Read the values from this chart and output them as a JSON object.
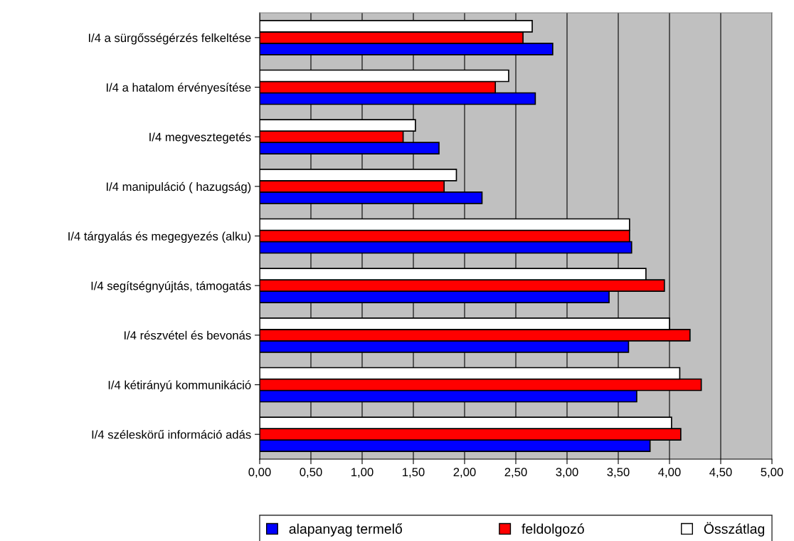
{
  "chart_data": {
    "type": "bar",
    "orientation": "horizontal",
    "categories": [
      "I/4 a sürgősségérzés felkeltése",
      "I/4 a hatalom érvényesítése",
      "I/4 megvesztegetés",
      "I/4 manipuláció ( hazugság)",
      "I/4 tárgyalás és megegyezés (alku)",
      "I/4 segítségnyújtás, támogatás",
      "I/4 részvétel és bevonás",
      "I/4 kétirányú kommunikáció",
      "I/4 széleskörű információ adás"
    ],
    "series": [
      {
        "name": "alapanyag termelő",
        "color": "#0000ff",
        "values": [
          2.86,
          2.69,
          1.75,
          2.17,
          3.63,
          3.41,
          3.6,
          3.68,
          3.81
        ]
      },
      {
        "name": "feldolgozó",
        "color": "#ff0000",
        "values": [
          2.57,
          2.3,
          1.4,
          1.8,
          3.61,
          3.95,
          4.2,
          4.31,
          4.11
        ]
      },
      {
        "name": "Összátlag",
        "color": "#ffffff",
        "values": [
          2.66,
          2.43,
          1.52,
          1.92,
          3.61,
          3.77,
          4.0,
          4.1,
          4.02
        ]
      }
    ],
    "xlim": [
      0,
      5
    ],
    "xticks": [
      {
        "value": 0,
        "label": "0,00"
      },
      {
        "value": 0.5,
        "label": "0,50"
      },
      {
        "value": 1,
        "label": "1,00"
      },
      {
        "value": 1.5,
        "label": "1,50"
      },
      {
        "value": 2,
        "label": "2,00"
      },
      {
        "value": 2.5,
        "label": "2,50"
      },
      {
        "value": 3,
        "label": "3,00"
      },
      {
        "value": 3.5,
        "label": "3,50"
      },
      {
        "value": 4,
        "label": "4,00"
      },
      {
        "value": 4.5,
        "label": "4,50"
      },
      {
        "value": 5,
        "label": "5,00"
      }
    ],
    "grid": "x",
    "legend": "bottom"
  }
}
